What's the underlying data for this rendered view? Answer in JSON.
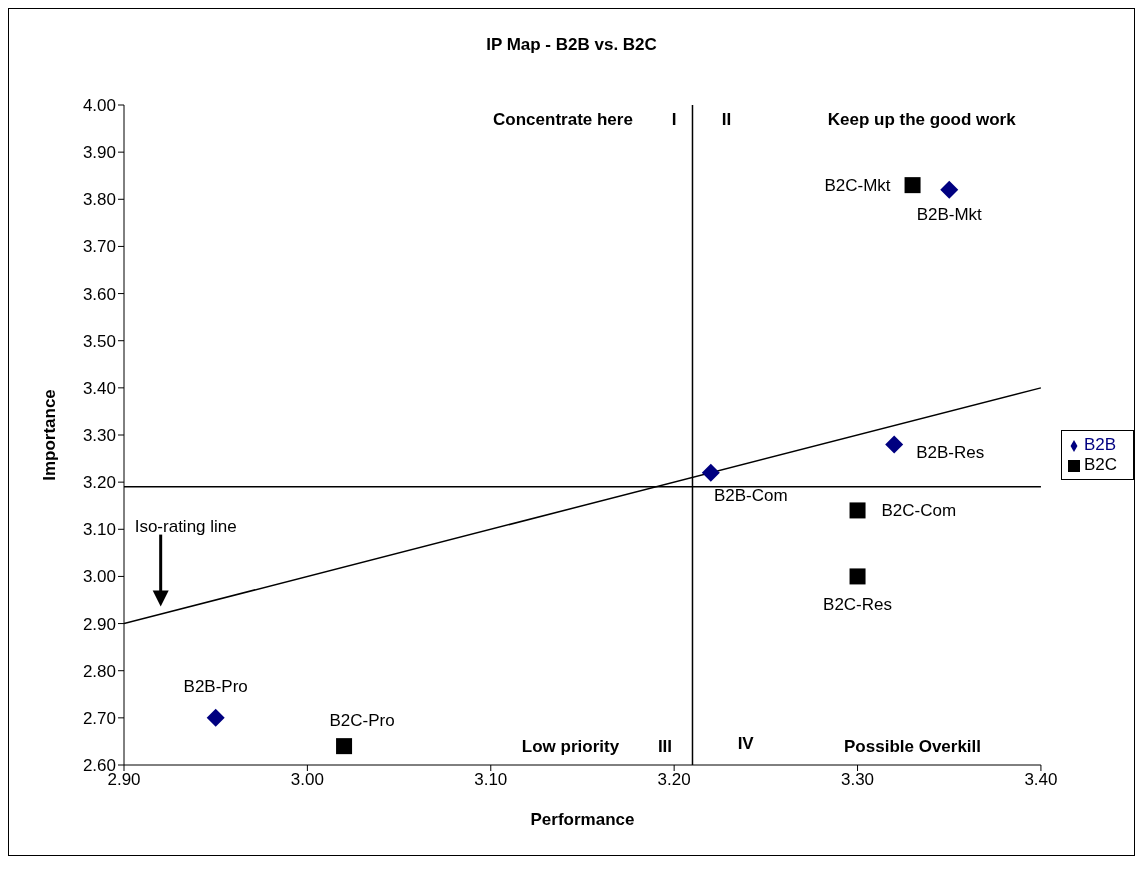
{
  "chart_data": {
    "type": "scatter",
    "title": "IP Map - B2B vs. B2C",
    "xlabel": "Performance",
    "ylabel": "Importance",
    "xlim": [
      2.9,
      3.4
    ],
    "ylim": [
      2.6,
      4.0
    ],
    "xticks": [
      {
        "value": 2.9,
        "label": "2.90"
      },
      {
        "value": 3.0,
        "label": "3.00"
      },
      {
        "value": 3.1,
        "label": "3.10"
      },
      {
        "value": 3.2,
        "label": "3.20"
      },
      {
        "value": 3.3,
        "label": "3.30"
      },
      {
        "value": 3.4,
        "label": "3.40"
      }
    ],
    "yticks": [
      {
        "value": 2.6,
        "label": "2.60"
      },
      {
        "value": 2.7,
        "label": "2.70"
      },
      {
        "value": 2.8,
        "label": "2.80"
      },
      {
        "value": 2.9,
        "label": "2.90"
      },
      {
        "value": 3.0,
        "label": "3.00"
      },
      {
        "value": 3.1,
        "label": "3.10"
      },
      {
        "value": 3.2,
        "label": "3.20"
      },
      {
        "value": 3.3,
        "label": "3.30"
      },
      {
        "value": 3.4,
        "label": "3.40"
      },
      {
        "value": 3.5,
        "label": "3.50"
      },
      {
        "value": 3.6,
        "label": "3.60"
      },
      {
        "value": 3.7,
        "label": "3.70"
      },
      {
        "value": 3.8,
        "label": "3.80"
      },
      {
        "value": 3.9,
        "label": "3.90"
      },
      {
        "value": 4.0,
        "label": "4.00"
      }
    ],
    "series": [
      {
        "name": "B2B",
        "marker": "diamond",
        "color": "#000080",
        "x": [
          3.35,
          3.32,
          3.22,
          2.95
        ],
        "values": [
          3.82,
          3.28,
          3.22,
          2.7
        ]
      },
      {
        "name": "B2C",
        "marker": "square",
        "color": "#000000",
        "x": [
          3.33,
          3.3,
          3.3,
          3.02
        ],
        "values": [
          3.83,
          3.14,
          3.0,
          2.64
        ]
      },
      {
        "type": "line",
        "marker": "none",
        "color": "#000000",
        "x": [
          2.9,
          3.4
        ],
        "values": [
          2.9,
          3.4
        ]
      }
    ],
    "ref_lines": [
      {
        "axis": "x",
        "value": 3.21,
        "color": "#000000"
      },
      {
        "axis": "y",
        "value": 3.19,
        "color": "#000000"
      }
    ],
    "annotations": [
      {
        "text": "B2B-Mkt",
        "x": 3.35,
        "y": 3.82
      },
      {
        "text": "B2B-Res",
        "x": 3.32,
        "y": 3.28
      },
      {
        "text": "B2B-Com",
        "x": 3.22,
        "y": 3.22
      },
      {
        "text": "B2B-Pro",
        "x": 2.95,
        "y": 2.7
      },
      {
        "text": "B2C-Mkt",
        "x": 3.33,
        "y": 3.83
      },
      {
        "text": "B2C-Com",
        "x": 3.3,
        "y": 3.14
      },
      {
        "text": "B2C-Res",
        "x": 3.3,
        "y": 3.0
      },
      {
        "text": "B2C-Pro",
        "x": 3.02,
        "y": 2.64
      },
      "Concentrate here",
      "I",
      "II",
      "Keep up the good work",
      "Low priority",
      "III",
      "IV",
      "Possible Overkill",
      "Iso-rating line"
    ],
    "legend": "right"
  }
}
